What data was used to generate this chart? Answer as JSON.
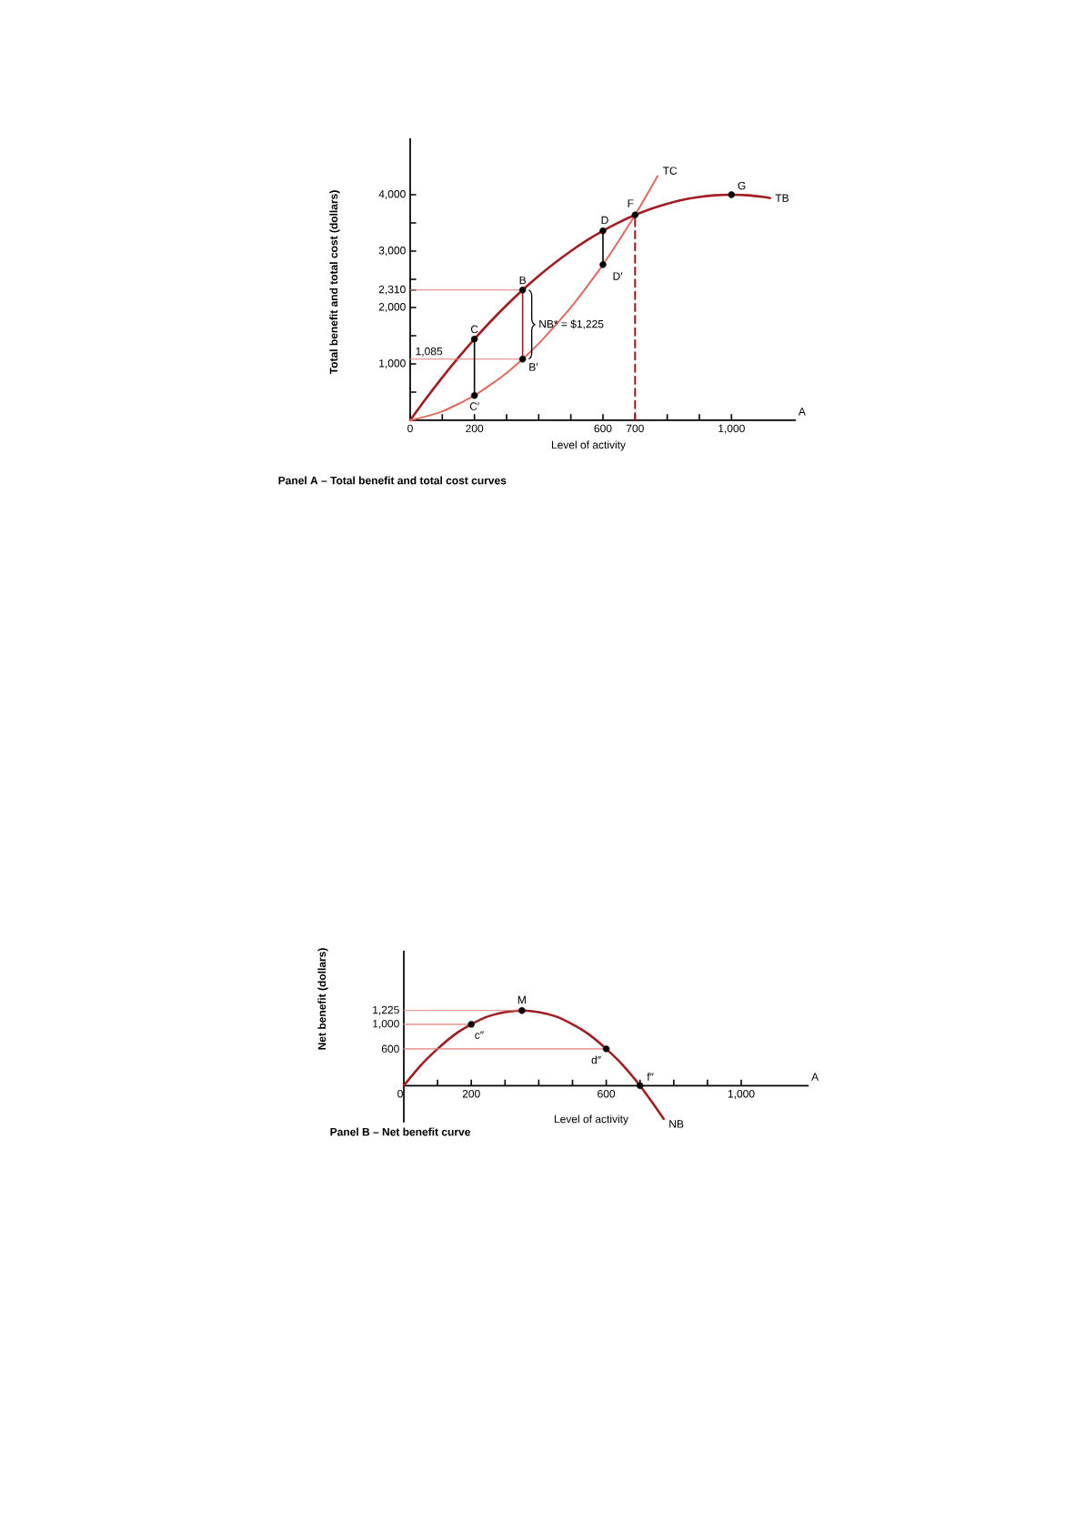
{
  "chart_data": [
    {
      "type": "line",
      "title": "Panel A – Total benefit and total cost curves",
      "xlabel": "Level of activity",
      "ylabel": "Total benefit and total cost (dollars)",
      "xlim": [
        0,
        1200
      ],
      "ylim": [
        0,
        5000
      ],
      "xticks": [
        0,
        {
          "value": 100,
          "label": null
        },
        200,
        {
          "value": 300,
          "label": null
        },
        {
          "value": 400,
          "label": null
        },
        {
          "value": 500,
          "label": null
        },
        600,
        700,
        {
          "value": 800,
          "label": null
        },
        {
          "value": 900,
          "label": null
        },
        {
          "value": 1000,
          "label": "1,000"
        }
      ],
      "yticks": [
        {
          "value": 500,
          "label": null
        },
        {
          "value": 1000,
          "label": "1,000"
        },
        {
          "value": 1500,
          "label": null
        },
        {
          "value": 2000,
          "label": "2,000"
        },
        {
          "value": 2310,
          "label": "2,310"
        },
        {
          "value": 2500,
          "label": null
        },
        {
          "value": 3000,
          "label": "3,000"
        },
        {
          "value": 3500,
          "label": null
        },
        {
          "value": 4000,
          "label": "4,000"
        }
      ],
      "series": [
        {
          "name": "TB",
          "color": "#a11d21",
          "x": [
            0,
            50,
            100,
            150,
            200,
            250,
            300,
            350,
            400,
            450,
            500,
            550,
            600,
            650,
            700,
            750,
            800,
            850,
            900,
            950,
            1000,
            1050,
            1100,
            1120
          ],
          "values": [
            0,
            390,
            760,
            1110,
            1440,
            1750,
            2040,
            2310,
            2560,
            2790,
            3000,
            3190,
            3360,
            3510,
            3640,
            3750,
            3840,
            3910,
            3960,
            3990,
            4000,
            3990,
            3960,
            3940
          ]
        },
        {
          "name": "TC",
          "color": "#de6a62",
          "x": [
            0,
            50,
            100,
            150,
            200,
            250,
            300,
            350,
            400,
            450,
            500,
            550,
            600,
            650,
            700,
            750,
            770
          ],
          "values": [
            0,
            70,
            160,
            290,
            440,
            630,
            840,
            1085,
            1360,
            1670,
            2000,
            2370,
            2760,
            3190,
            3640,
            4130,
            4330
          ]
        },
        {
          "color": "#e0807a",
          "x": [
            0,
            350
          ],
          "values": [
            2310,
            2310
          ]
        },
        {
          "color": "#e0807a",
          "x": [
            0,
            350
          ],
          "values": [
            1085,
            1085
          ]
        },
        {
          "color": "#000000",
          "x": [
            200,
            200
          ],
          "values": [
            440,
            1440
          ]
        },
        {
          "color": "#a11d21",
          "x": [
            350,
            350
          ],
          "values": [
            1085,
            2310
          ]
        },
        {
          "color": "#000000",
          "x": [
            600,
            600
          ],
          "values": [
            2760,
            3360
          ]
        },
        {
          "color": "#8c1c1f",
          "line_style": "dashed",
          "x": [
            700,
            700
          ],
          "values": [
            0,
            3640
          ]
        },
        {
          "type": "scatter",
          "color": "#000000",
          "marker": "circle",
          "x": [
            200,
            200,
            350,
            350,
            600,
            600,
            700,
            1000
          ],
          "values": [
            1440,
            440,
            2310,
            1085,
            3360,
            2760,
            3640,
            4000
          ]
        }
      ],
      "annotations": [
        "A",
        {
          "text": "C",
          "x": 200,
          "y": 1440
        },
        {
          "text": "C′",
          "x": 200,
          "y": 440
        },
        {
          "text": "B",
          "x": 350,
          "y": 2310
        },
        {
          "text": "B′",
          "x": 350,
          "y": 1085
        },
        {
          "text": "D",
          "x": 600,
          "y": 3360
        },
        {
          "text": "D′",
          "x": 600,
          "y": 2760
        },
        {
          "text": "F",
          "x": 700,
          "y": 3640
        },
        {
          "text": "G",
          "x": 1000,
          "y": 4000
        },
        {
          "text": "NB* = $1,225",
          "x": 350,
          "y": 1700
        },
        {
          "text": "1,085",
          "x": 0,
          "y": 1085
        }
      ]
    },
    {
      "type": "line",
      "title": "Panel B – Net benefit curve",
      "xlabel": "Level of activity",
      "ylabel": "Net benefit (dollars)",
      "xlim": [
        0,
        1200
      ],
      "ylim": [
        -600,
        2200
      ],
      "xticks": [
        0,
        {
          "value": 100,
          "label": null
        },
        200,
        {
          "value": 300,
          "label": null
        },
        {
          "value": 400,
          "label": null
        },
        {
          "value": 500,
          "label": null
        },
        600,
        {
          "value": 700,
          "label": null
        },
        {
          "value": 800,
          "label": null
        },
        {
          "value": 900,
          "label": null
        },
        {
          "value": 1000,
          "label": "1,000"
        }
      ],
      "yticks": [
        600,
        {
          "value": 1000,
          "label": "1,000"
        },
        {
          "value": 1225,
          "label": "1,225"
        }
      ],
      "series": [
        {
          "name": "NB",
          "color": "#a11d21",
          "x": [
            0,
            50,
            100,
            150,
            200,
            250,
            300,
            350,
            400,
            450,
            500,
            550,
            600,
            650,
            700,
            750,
            770
          ],
          "values": [
            0,
            330,
            600,
            830,
            1000,
            1130,
            1200,
            1225,
            1200,
            1130,
            1000,
            830,
            600,
            330,
            0,
            -380,
            -540
          ]
        },
        {
          "color": "#e0807a",
          "x": [
            0,
            350
          ],
          "values": [
            1225,
            1225
          ]
        },
        {
          "color": "#e0807a",
          "x": [
            0,
            200
          ],
          "values": [
            1000,
            1000
          ]
        },
        {
          "color": "#e0807a",
          "x": [
            0,
            600
          ],
          "values": [
            600,
            600
          ]
        },
        {
          "type": "scatter",
          "color": "#000000",
          "marker": "circle",
          "x": [
            200,
            350,
            600,
            700
          ],
          "values": [
            1000,
            1225,
            600,
            0
          ]
        }
      ],
      "annotations": [
        "A",
        {
          "text": "M",
          "x": 350,
          "y": 1225
        },
        {
          "text": "c″",
          "x": 200,
          "y": 1000
        },
        {
          "text": "d″",
          "x": 600,
          "y": 600
        },
        {
          "text": "f″",
          "x": 700,
          "y": 0
        }
      ]
    }
  ]
}
